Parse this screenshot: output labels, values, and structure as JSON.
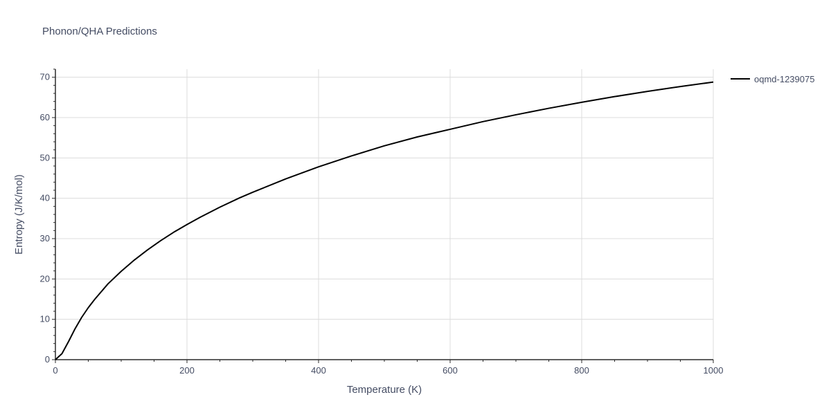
{
  "chart_data": {
    "type": "line",
    "title": "Phonon/QHA Predictions",
    "xlabel": "Temperature (K)",
    "ylabel": "Entropy (J/K/mol)",
    "xlim": [
      0,
      1000
    ],
    "ylim": [
      0,
      72
    ],
    "x_ticks": [
      0,
      200,
      400,
      600,
      800,
      1000
    ],
    "y_ticks": [
      0,
      10,
      20,
      30,
      40,
      50,
      60,
      70
    ],
    "grid": true,
    "legend_position": "top-right",
    "series": [
      {
        "name": "oqmd-1239075",
        "color": "#000000",
        "x": [
          0,
          10,
          20,
          30,
          40,
          50,
          60,
          80,
          100,
          120,
          140,
          160,
          180,
          200,
          220,
          250,
          280,
          300,
          350,
          400,
          450,
          500,
          550,
          600,
          650,
          700,
          750,
          800,
          850,
          900,
          950,
          1000
        ],
        "y": [
          0,
          1.5,
          4.5,
          7.7,
          10.5,
          12.9,
          15.0,
          18.8,
          21.9,
          24.7,
          27.2,
          29.5,
          31.6,
          33.5,
          35.3,
          37.8,
          40.1,
          41.5,
          44.8,
          47.8,
          50.5,
          53.0,
          55.2,
          57.1,
          59.0,
          60.7,
          62.3,
          63.8,
          65.2,
          66.5,
          67.7,
          68.8
        ]
      }
    ]
  }
}
